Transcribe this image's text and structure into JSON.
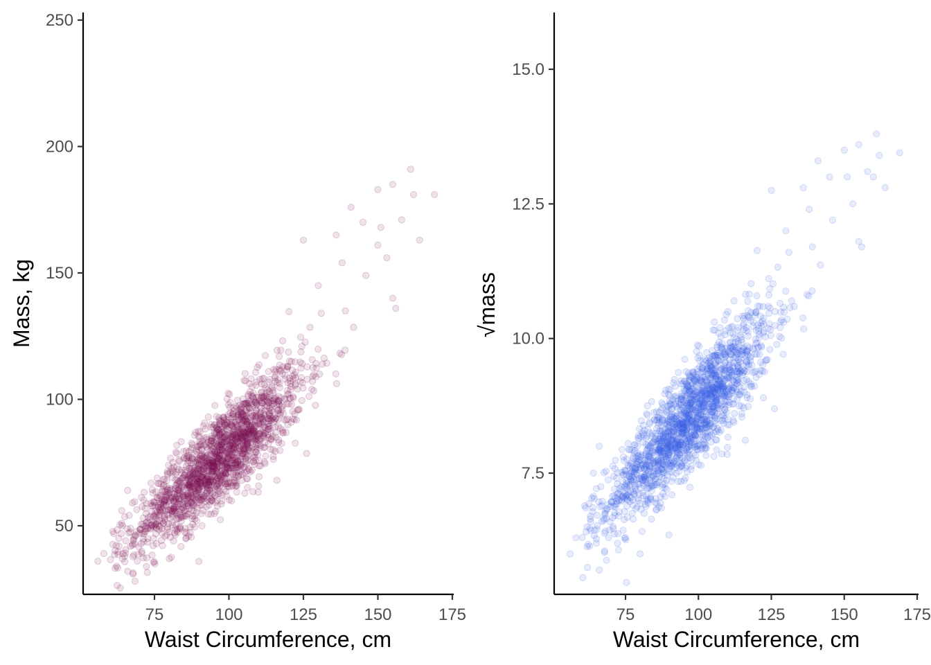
{
  "chart_data": [
    {
      "type": "scatter",
      "xlabel": "Waist Circumference, cm",
      "ylabel": "Mass, kg",
      "xlim": [
        52,
        175
      ],
      "ylim": [
        23,
        253
      ],
      "xticks": [
        75,
        100,
        125,
        150,
        175
      ],
      "xtick_labels": [
        "75",
        "100",
        "125",
        "150",
        "175"
      ],
      "yticks": [
        50,
        100,
        150,
        200,
        250
      ],
      "ytick_labels": [
        "50",
        "100",
        "150",
        "200",
        "250"
      ],
      "grid": false,
      "legend": "none",
      "point_color": "#7A0F52",
      "point_opacity": 0.12,
      "trend": {
        "slope": 1.05,
        "intercept": -25,
        "x_mean": 97,
        "x_sd": 14,
        "resid_sd": 9.5
      },
      "points": [
        {
          "x": 56,
          "y": 36
        },
        {
          "x": 58,
          "y": 39
        },
        {
          "x": 63,
          "y": 45
        },
        {
          "x": 65,
          "y": 38
        },
        {
          "x": 66,
          "y": 32
        },
        {
          "x": 64,
          "y": 56
        },
        {
          "x": 66,
          "y": 64
        },
        {
          "x": 80,
          "y": 37
        },
        {
          "x": 141,
          "y": 176
        },
        {
          "x": 145,
          "y": 170
        },
        {
          "x": 150,
          "y": 183
        },
        {
          "x": 155,
          "y": 185
        },
        {
          "x": 158,
          "y": 171
        },
        {
          "x": 161,
          "y": 191
        },
        {
          "x": 162,
          "y": 181
        },
        {
          "x": 169,
          "y": 181
        },
        {
          "x": 164,
          "y": 163
        },
        {
          "x": 151,
          "y": 168
        },
        {
          "x": 136,
          "y": 165
        },
        {
          "x": 125,
          "y": 163
        },
        {
          "x": 138,
          "y": 154
        },
        {
          "x": 155,
          "y": 140
        },
        {
          "x": 156,
          "y": 136
        },
        {
          "x": 131,
          "y": 134
        },
        {
          "x": 146,
          "y": 149
        },
        {
          "x": 130,
          "y": 145
        },
        {
          "x": 150,
          "y": 161
        },
        {
          "x": 153,
          "y": 156
        }
      ]
    },
    {
      "type": "scatter",
      "xlabel": "Waist Circumference, cm",
      "ylabel": "√mass",
      "xlim": [
        52,
        175
      ],
      "ylim": [
        5.4,
        16.2
      ],
      "xticks": [
        75,
        100,
        125,
        150,
        175
      ],
      "xtick_labels": [
        "75",
        "100",
        "125",
        "150",
        "175"
      ],
      "yticks": [
        7.5,
        10.0,
        12.5,
        15.0
      ],
      "ytick_labels": [
        "7.5",
        "10.0",
        "12.5",
        "15.0"
      ],
      "grid": false,
      "legend": "none",
      "point_color": "#3A5FE6",
      "point_opacity": 0.12,
      "trend": {
        "slope": 0.058,
        "intercept": 2.9,
        "x_mean": 97,
        "x_sd": 14,
        "resid_sd": 0.5
      },
      "points": [
        {
          "x": 56,
          "y": 6.0
        },
        {
          "x": 58,
          "y": 6.3
        },
        {
          "x": 63,
          "y": 6.7
        },
        {
          "x": 65,
          "y": 6.2
        },
        {
          "x": 66,
          "y": 5.7
        },
        {
          "x": 64,
          "y": 7.5
        },
        {
          "x": 66,
          "y": 8.0
        },
        {
          "x": 80,
          "y": 6.0
        },
        {
          "x": 141,
          "y": 13.3
        },
        {
          "x": 145,
          "y": 13.0
        },
        {
          "x": 150,
          "y": 13.5
        },
        {
          "x": 155,
          "y": 13.6
        },
        {
          "x": 158,
          "y": 13.1
        },
        {
          "x": 161,
          "y": 13.8
        },
        {
          "x": 162,
          "y": 13.4
        },
        {
          "x": 169,
          "y": 13.45
        },
        {
          "x": 164,
          "y": 12.8
        },
        {
          "x": 151,
          "y": 13.0
        },
        {
          "x": 136,
          "y": 12.8
        },
        {
          "x": 125,
          "y": 12.75
        },
        {
          "x": 138,
          "y": 12.4
        },
        {
          "x": 155,
          "y": 11.8
        },
        {
          "x": 156,
          "y": 11.7
        },
        {
          "x": 131,
          "y": 11.6
        },
        {
          "x": 146,
          "y": 12.2
        },
        {
          "x": 130,
          "y": 12.0
        },
        {
          "x": 153,
          "y": 12.5
        },
        {
          "x": 160,
          "y": 13.0
        }
      ]
    }
  ]
}
